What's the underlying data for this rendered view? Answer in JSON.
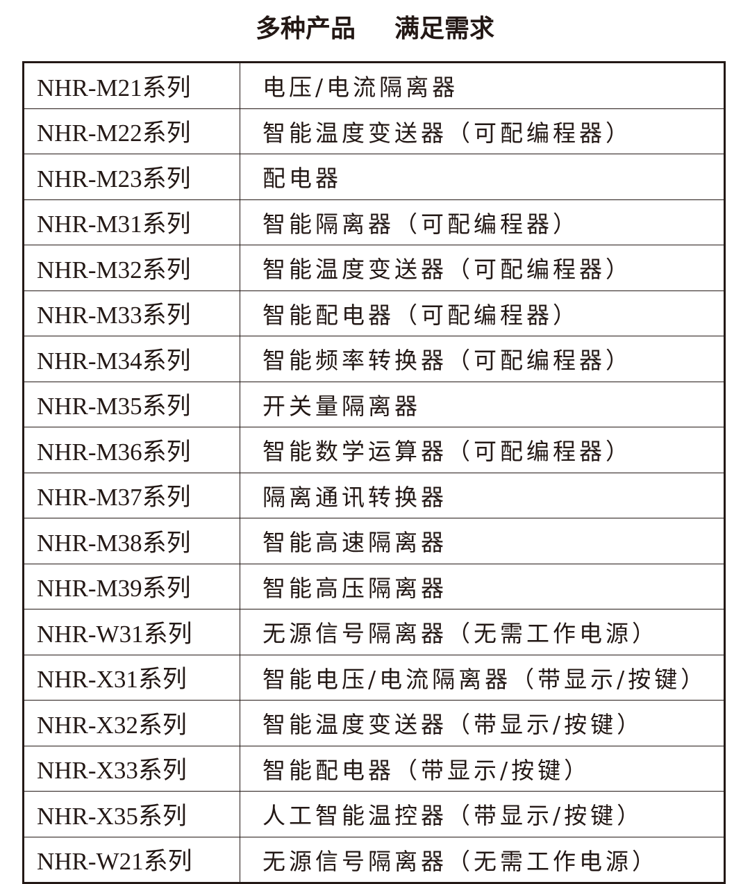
{
  "title": {
    "left": "多种产品",
    "right": "满足需求"
  },
  "colors": {
    "text": "#231815",
    "border": "#231815",
    "background": "#ffffff"
  },
  "rows": [
    {
      "model": "NHR-M21系列",
      "desc": "电压/电流隔离器"
    },
    {
      "model": "NHR-M22系列",
      "desc": "智能温度变送器（可配编程器）"
    },
    {
      "model": "NHR-M23系列",
      "desc": "配电器"
    },
    {
      "model": "NHR-M31系列",
      "desc": "智能隔离器（可配编程器）"
    },
    {
      "model": "NHR-M32系列",
      "desc": "智能温度变送器（可配编程器）"
    },
    {
      "model": "NHR-M33系列",
      "desc": "智能配电器（可配编程器）"
    },
    {
      "model": "NHR-M34系列",
      "desc": "智能频率转换器（可配编程器）"
    },
    {
      "model": "NHR-M35系列",
      "desc": "开关量隔离器"
    },
    {
      "model": "NHR-M36系列",
      "desc": "智能数学运算器（可配编程器）"
    },
    {
      "model": "NHR-M37系列",
      "desc": "隔离通讯转换器"
    },
    {
      "model": "NHR-M38系列",
      "desc": "智能高速隔离器"
    },
    {
      "model": "NHR-M39系列",
      "desc": "智能高压隔离器"
    },
    {
      "model": "NHR-W31系列",
      "desc": "无源信号隔离器（无需工作电源）"
    },
    {
      "model": "NHR-X31系列",
      "desc": "智能电压/电流隔离器（带显示/按键）"
    },
    {
      "model": "NHR-X32系列",
      "desc": "智能温度变送器（带显示/按键）"
    },
    {
      "model": "NHR-X33系列",
      "desc": "智能配电器（带显示/按键）"
    },
    {
      "model": "NHR-X35系列",
      "desc": "人工智能温控器（带显示/按键）"
    },
    {
      "model": "NHR-W21系列",
      "desc": "无源信号隔离器（无需工作电源）"
    }
  ]
}
